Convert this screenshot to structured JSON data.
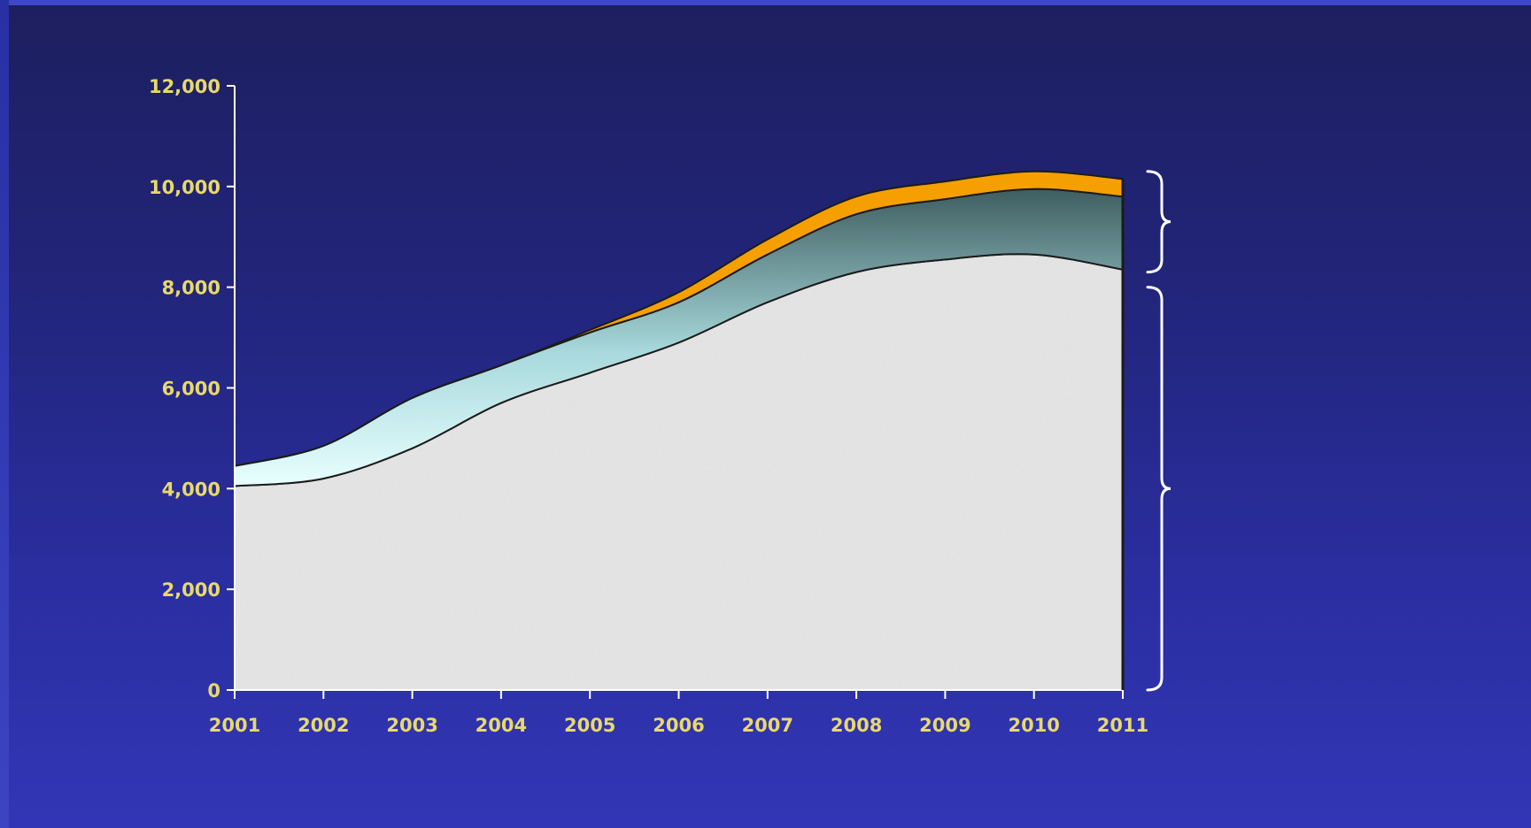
{
  "chart_data": {
    "type": "area",
    "stacked": true,
    "x": [
      2001,
      2002,
      2003,
      2004,
      2005,
      2006,
      2007,
      2008,
      2009,
      2010,
      2011
    ],
    "x_tick_labels": [
      "2001",
      "2002",
      "2003",
      "2004",
      "2005",
      "2006",
      "2007",
      "2008",
      "2009",
      "2010",
      "2011"
    ],
    "y_tick_labels": [
      "0",
      "2,000",
      "4,000",
      "6,000",
      "8,000",
      "10,000",
      "12,000"
    ],
    "ylim": [
      0,
      12000
    ],
    "grid": false,
    "series": [
      {
        "color": "#e8e8e8",
        "values": [
          4050,
          4200,
          4800,
          5700,
          6300,
          6900,
          7700,
          8300,
          8550,
          8650,
          8350
        ]
      },
      {
        "color": "#7fb9c0",
        "values": [
          400,
          650,
          1000,
          750,
          800,
          800,
          950,
          1150,
          1200,
          1300,
          1450
        ]
      },
      {
        "color": "#f5a000",
        "values": [
          0,
          0,
          0,
          0,
          50,
          200,
          300,
          350,
          350,
          350,
          350
        ]
      }
    ],
    "braces": [
      {
        "from": 8300,
        "to": 10300
      },
      {
        "from": 0,
        "to": 8000
      }
    ],
    "colors": {
      "background_top": "#1d1f5f",
      "background_bottom": "#3236b6",
      "axis": "#ffffff",
      "tick_text": "#e8d96a"
    }
  }
}
